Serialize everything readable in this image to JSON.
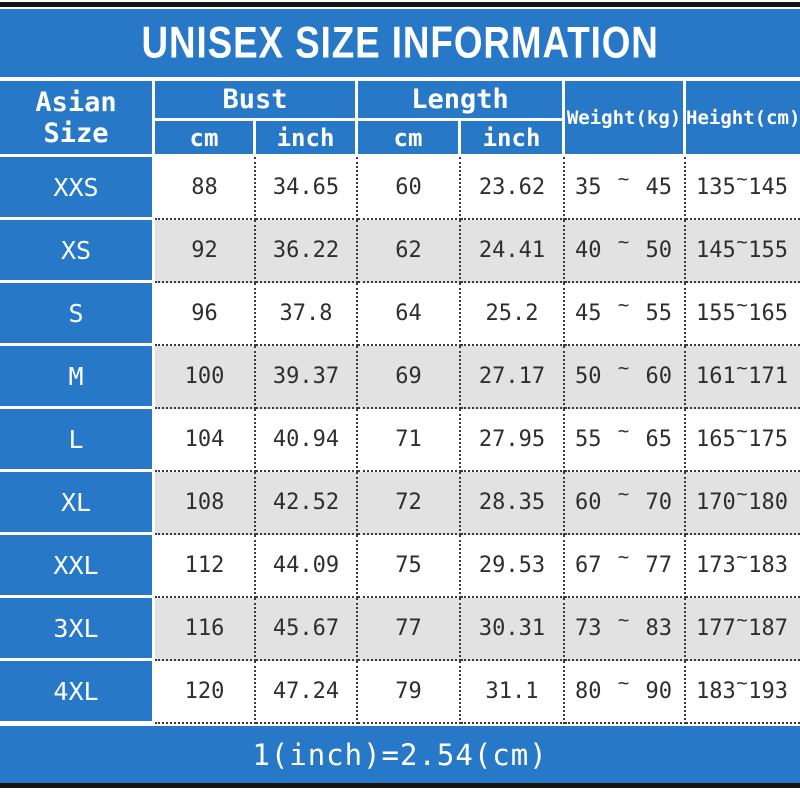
{
  "title": "UNISEX SIZE INFORMATION",
  "footer_note": "1(inch)=2.54(cm)",
  "symbols": {
    "tilde": "~"
  },
  "headers": {
    "size": "Asian Size",
    "bust": "Bust",
    "length": "Length",
    "weight": "Weight(kg)",
    "height": "Height(cm)",
    "units": [
      "cm",
      "inch",
      "cm",
      "inch"
    ]
  },
  "colors": {
    "blue": "#2878C8",
    "alt_row_gray": "#E3E2E2",
    "bar_black": "#141414",
    "text_dark": "#2e2e2e",
    "header_text": "#ffffff"
  },
  "chart_data": {
    "type": "table",
    "title": "UNISEX SIZE INFORMATION",
    "columns": [
      "Asian Size",
      "Bust cm",
      "Bust inch",
      "Length cm",
      "Length inch",
      "Weight(kg)",
      "Height(cm)"
    ],
    "rows": [
      {
        "size": "XXS",
        "bust_cm": "88",
        "bust_inch": "34.65",
        "length_cm": "60",
        "length_inch": "23.62",
        "weight_min": "35",
        "weight_max": "45",
        "height_min": "135",
        "height_max": "145"
      },
      {
        "size": "XS",
        "bust_cm": "92",
        "bust_inch": "36.22",
        "length_cm": "62",
        "length_inch": "24.41",
        "weight_min": "40",
        "weight_max": "50",
        "height_min": "145",
        "height_max": "155"
      },
      {
        "size": "S",
        "bust_cm": "96",
        "bust_inch": "37.8",
        "length_cm": "64",
        "length_inch": "25.2",
        "weight_min": "45",
        "weight_max": "55",
        "height_min": "155",
        "height_max": "165"
      },
      {
        "size": "M",
        "bust_cm": "100",
        "bust_inch": "39.37",
        "length_cm": "69",
        "length_inch": "27.17",
        "weight_min": "50",
        "weight_max": "60",
        "height_min": "161",
        "height_max": "171"
      },
      {
        "size": "L",
        "bust_cm": "104",
        "bust_inch": "40.94",
        "length_cm": "71",
        "length_inch": "27.95",
        "weight_min": "55",
        "weight_max": "65",
        "height_min": "165",
        "height_max": "175"
      },
      {
        "size": "XL",
        "bust_cm": "108",
        "bust_inch": "42.52",
        "length_cm": "72",
        "length_inch": "28.35",
        "weight_min": "60",
        "weight_max": "70",
        "height_min": "170",
        "height_max": "180"
      },
      {
        "size": "XXL",
        "bust_cm": "112",
        "bust_inch": "44.09",
        "length_cm": "75",
        "length_inch": "29.53",
        "weight_min": "67",
        "weight_max": "77",
        "height_min": "173",
        "height_max": "183"
      },
      {
        "size": "3XL",
        "bust_cm": "116",
        "bust_inch": "45.67",
        "length_cm": "77",
        "length_inch": "30.31",
        "weight_min": "73",
        "weight_max": "83",
        "height_min": "177",
        "height_max": "187"
      },
      {
        "size": "4XL",
        "bust_cm": "120",
        "bust_inch": "47.24",
        "length_cm": "79",
        "length_inch": "31.1",
        "weight_min": "80",
        "weight_max": "90",
        "height_min": "183",
        "height_max": "193"
      }
    ]
  }
}
